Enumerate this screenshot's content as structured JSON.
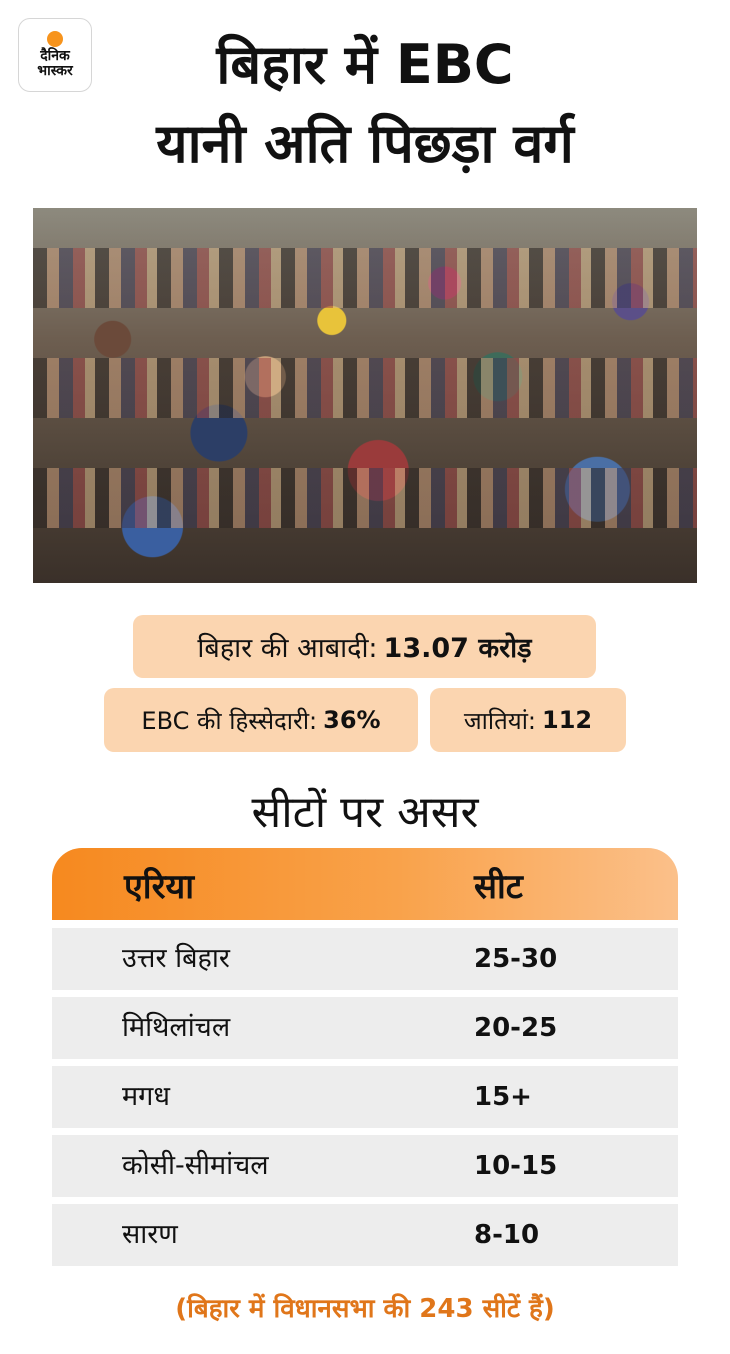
{
  "brand": {
    "line1": "दैनिक",
    "line2": "भास्कर",
    "accent": "#f7941d"
  },
  "title": {
    "line1": "बिहार में EBC",
    "line2": "यानी अति पिछड़ा वर्ग"
  },
  "stats": {
    "population": {
      "label": "बिहार की आबादी:",
      "value": "13.07 करोड़"
    },
    "ebc_share": {
      "label": "EBC की हिस्सेदारी:",
      "value": "36%"
    },
    "castes": {
      "label": "जातियां:",
      "value": "112"
    }
  },
  "section_title": "सीटों पर असर",
  "table": {
    "headers": {
      "area": "एरिया",
      "seats": "सीट"
    },
    "rows": [
      {
        "area": "उत्तर बिहार",
        "seats": "25-30"
      },
      {
        "area": "मिथिलांचल",
        "seats": "20-25"
      },
      {
        "area": "मगध",
        "seats": "15+"
      },
      {
        "area": "कोसी-सीमांचल",
        "seats": "10-15"
      },
      {
        "area": "सारण",
        "seats": "8-10"
      }
    ]
  },
  "footnote": "(बिहार में विधानसभा की 243 सीटें हैं)",
  "colors": {
    "pill_bg": "#fbd5b0",
    "header_gradient_start": "#f6891f",
    "header_gradient_end": "#fbc08a",
    "row_bg": "#ededed",
    "footnote": "#e0761a"
  }
}
